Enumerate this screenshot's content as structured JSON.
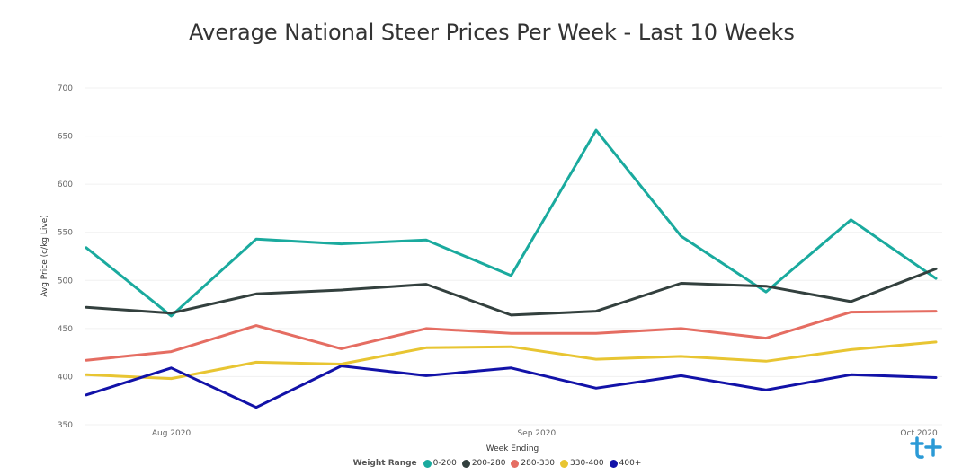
{
  "chart_data": {
    "type": "line",
    "title": "Average National Steer Prices Per Week - Last 10 Weeks",
    "xlabel": "Week Ending",
    "ylabel": "Avg Price (c/kg Live)",
    "ylim": [
      350,
      700
    ],
    "yticks": [
      "700",
      "650",
      "600",
      "550",
      "500",
      "450",
      "400",
      "350"
    ],
    "xticks": [
      "Aug 2020",
      "Sep 2020",
      "Oct 2020"
    ],
    "x": [
      0,
      1,
      2,
      3,
      4,
      5,
      6,
      7,
      8,
      9,
      10
    ],
    "grid": true,
    "legend_title": "Weight Range",
    "legend_position": "bottom",
    "series": [
      {
        "name": "0-200",
        "color": "#1AAA9E",
        "values": [
          534,
          463,
          543,
          538,
          542,
          505,
          656,
          546,
          488,
          563,
          502
        ]
      },
      {
        "name": "200-280",
        "color": "#33403E",
        "values": [
          472,
          466,
          486,
          490,
          496,
          464,
          468,
          497,
          494,
          478,
          512
        ]
      },
      {
        "name": "280-330",
        "color": "#E56D62",
        "values": [
          417,
          426,
          453,
          429,
          450,
          445,
          445,
          450,
          440,
          467,
          468
        ]
      },
      {
        "name": "330-400",
        "color": "#E8C532",
        "values": [
          402,
          398,
          415,
          413,
          430,
          431,
          418,
          421,
          416,
          428,
          436
        ]
      },
      {
        "name": "400+",
        "color": "#1212A8",
        "values": [
          381,
          409,
          368,
          411,
          401,
          409,
          388,
          401,
          386,
          402,
          399
        ]
      }
    ]
  },
  "logo": {
    "name": "tplus-logo",
    "color": "#2B9AD6"
  }
}
